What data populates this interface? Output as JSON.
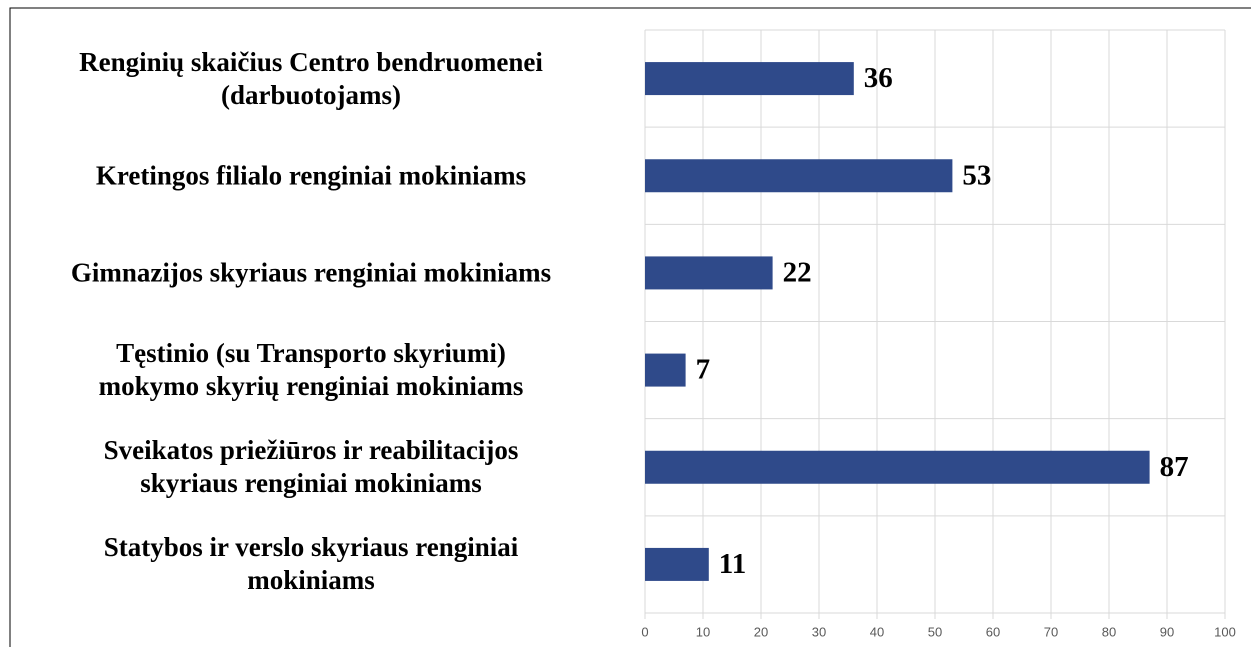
{
  "chart_data": {
    "type": "bar",
    "orientation": "horizontal",
    "categories": [
      "Renginių skaičius Centro bendruomenei\n(darbuotojams)",
      "Kretingos filialo renginiai mokiniams",
      "Gimnazijos skyriaus renginiai mokiniams",
      "Tęstinio (su Transporto skyriumi)\nmokymo skyrių renginiai mokiniams",
      "Sveikatos priežiūros ir reabilitacijos\nskyriaus renginiai mokiniams",
      "Statybos ir verslo skyriaus renginiai\nmokiniams"
    ],
    "values": [
      36,
      53,
      22,
      7,
      87,
      11
    ],
    "color": "#2f4a8a",
    "xlim": [
      0,
      100
    ],
    "xticks": [
      0,
      10,
      20,
      30,
      40,
      50,
      60,
      70,
      80,
      90,
      100
    ],
    "grid": true
  }
}
